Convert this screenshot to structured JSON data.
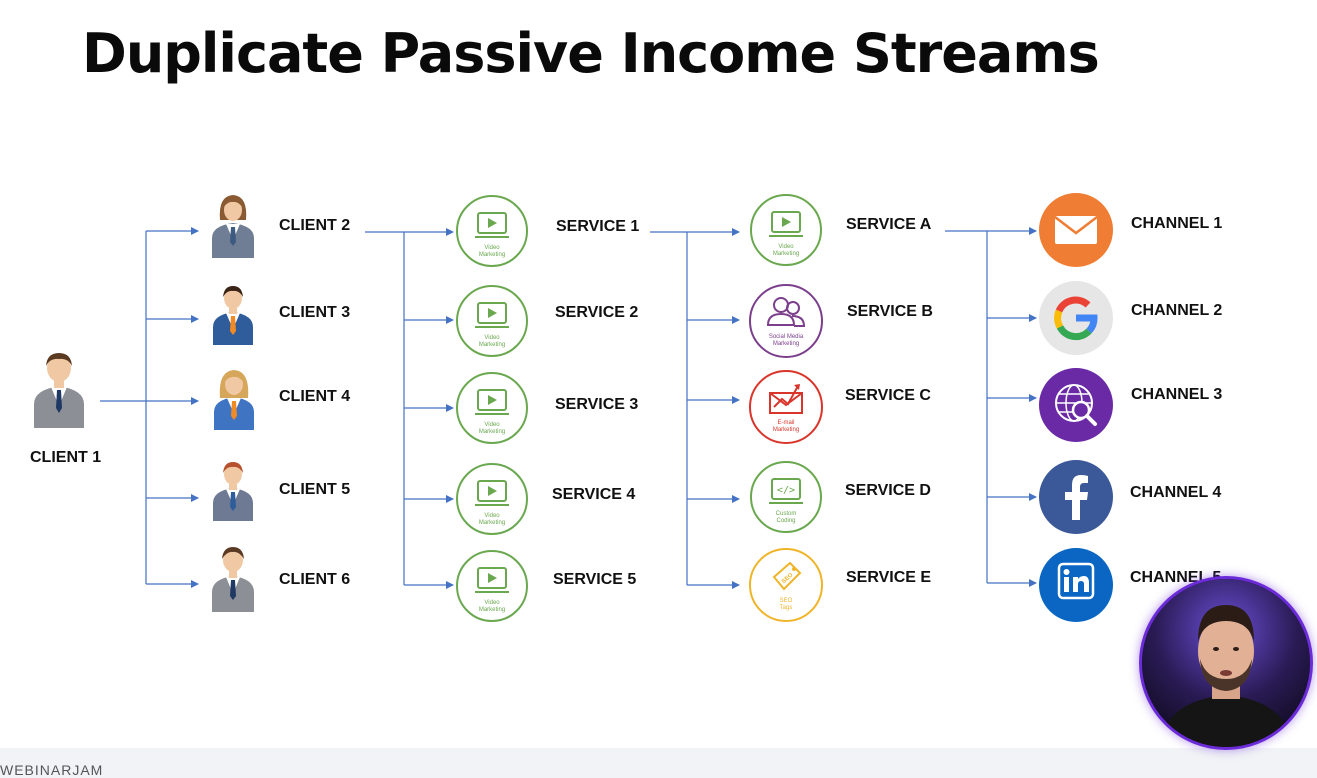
{
  "title": "Duplicate Passive Income Streams",
  "watermark": "WEBINARJAM",
  "root": {
    "label": "CLIENT 1",
    "icon": "businessman-icon"
  },
  "clients": [
    {
      "label": "CLIENT 2",
      "icon": "businesswoman-icon"
    },
    {
      "label": "CLIENT 3",
      "icon": "businessman-icon"
    },
    {
      "label": "CLIENT 4",
      "icon": "businesswoman-icon"
    },
    {
      "label": "CLIENT 5",
      "icon": "businessman-icon"
    },
    {
      "label": "CLIENT 6",
      "icon": "businessman-icon"
    }
  ],
  "services": [
    {
      "label": "SERVICE 1",
      "icon": "video-marketing-icon",
      "caption": [
        "Video",
        "Marketing"
      ]
    },
    {
      "label": "SERVICE 2",
      "icon": "video-marketing-icon",
      "caption": [
        "Video",
        "Marketing"
      ]
    },
    {
      "label": "SERVICE 3",
      "icon": "video-marketing-icon",
      "caption": [
        "Video",
        "Marketing"
      ]
    },
    {
      "label": "SERVICE 4",
      "icon": "video-marketing-icon",
      "caption": [
        "Video",
        "Marketing"
      ]
    },
    {
      "label": "SERVICE 5",
      "icon": "video-marketing-icon",
      "caption": [
        "Video",
        "Marketing"
      ]
    }
  ],
  "service_types": [
    {
      "label": "SERVICE A",
      "icon": "video-marketing-icon",
      "caption": [
        "Video",
        "Marketing"
      ],
      "color": "#6aa84f"
    },
    {
      "label": "SERVICE B",
      "icon": "social-media-marketing-icon",
      "caption": [
        "Social Media",
        "Marketing"
      ],
      "color": "#7b3f8c"
    },
    {
      "label": "SERVICE C",
      "icon": "email-marketing-icon",
      "caption": [
        "E-mail",
        "Marketing"
      ],
      "color": "#d9352b"
    },
    {
      "label": "SERVICE D",
      "icon": "custom-coding-icon",
      "caption": [
        "Custom",
        "Coding"
      ],
      "color": "#6aa84f"
    },
    {
      "label": "SERVICE E",
      "icon": "seo-tags-icon",
      "caption": [
        "SEO",
        "Tags"
      ],
      "color": "#f0b429"
    }
  ],
  "channels": [
    {
      "label": "CHANNEL 1",
      "icon": "email-icon",
      "color": "#ef7d33"
    },
    {
      "label": "CHANNEL 2",
      "icon": "google-icon",
      "color": "#e6e6e6"
    },
    {
      "label": "CHANNEL 3",
      "icon": "web-search-icon",
      "color": "#6a2aa6"
    },
    {
      "label": "CHANNEL 4",
      "icon": "facebook-icon",
      "color": "#3b5998"
    },
    {
      "label": "CHANNEL 5",
      "icon": "linkedin-icon",
      "color": "#0a66c2"
    }
  ],
  "colors": {
    "connector": "#4472c4",
    "service_green": "#6aa84f"
  },
  "presenter": {
    "icon": "presenter-video-icon"
  }
}
